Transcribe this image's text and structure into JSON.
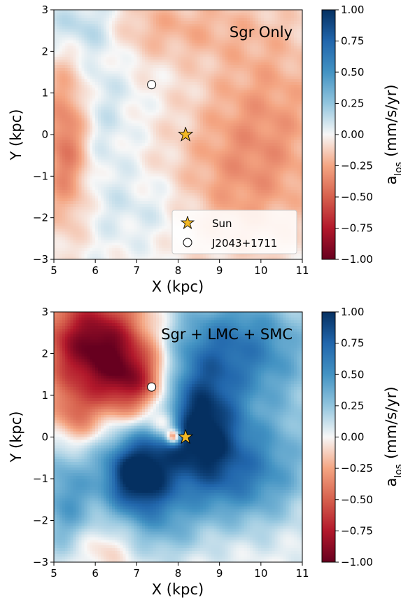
{
  "chart_data": [
    {
      "type": "heatmap",
      "title": "Sgr Only",
      "xlabel": "X (kpc)",
      "ylabel": "Y (kpc)",
      "xlim": [
        5,
        11
      ],
      "ylim": [
        -3,
        3
      ],
      "xticks": [
        "5",
        "6",
        "7",
        "8",
        "9",
        "10",
        "11"
      ],
      "yticks": [
        "3",
        "2",
        "1",
        "0",
        "−1",
        "−2",
        "−3"
      ],
      "colorbar": {
        "label_main": "a",
        "label_sub": "los",
        "label_unit": "(mm/s/yr)",
        "range": [
          -1.0,
          1.0
        ],
        "ticks": [
          "1.00",
          "0.75",
          "0.50",
          "0.25",
          "0.00",
          "−0.25",
          "−0.50",
          "−0.75",
          "−1.00"
        ],
        "colormap": "RdBu"
      },
      "markers": [
        {
          "name": "Sun",
          "shape": "star",
          "x": 8.18,
          "y": 0.0
        },
        {
          "name": "J2043+1711",
          "shape": "circle",
          "x": 7.36,
          "y": 1.2
        }
      ],
      "legend": {
        "placement": "lower-right",
        "entries": [
          "Sun",
          "J2043+1711"
        ]
      },
      "features": [
        {
          "x": 5.3,
          "y": -0.2,
          "sx": 0.4,
          "sy": 1.4,
          "a": -0.45
        },
        {
          "x": 10.2,
          "y": 0.8,
          "sx": 1.2,
          "sy": 1.6,
          "a": -0.22
        },
        {
          "x": 9.5,
          "y": -1.2,
          "sx": 1.3,
          "sy": 1.3,
          "a": -0.22
        },
        {
          "x": 7.5,
          "y": 2.6,
          "sx": 1.6,
          "sy": 0.6,
          "a": -0.2
        },
        {
          "x": 5.6,
          "y": 2.6,
          "sx": 0.7,
          "sy": 0.5,
          "a": 0.25
        },
        {
          "x": 6.0,
          "y": 0.5,
          "sx": 0.6,
          "sy": 1.5,
          "a": 0.12
        },
        {
          "x": 7.3,
          "y": -1.8,
          "sx": 0.8,
          "sy": 0.6,
          "a": 0.1
        }
      ]
    },
    {
      "type": "heatmap",
      "title": "Sgr + LMC + SMC",
      "xlabel": "X (kpc)",
      "ylabel": "Y (kpc)",
      "xlim": [
        5,
        11
      ],
      "ylim": [
        -3,
        3
      ],
      "xticks": [
        "5",
        "6",
        "7",
        "8",
        "9",
        "10",
        "11"
      ],
      "yticks": [
        "3",
        "2",
        "1",
        "0",
        "−1",
        "−2",
        "−3"
      ],
      "colorbar": {
        "label_main": "a",
        "label_sub": "los",
        "label_unit": "(mm/s/yr)",
        "range": [
          -1.0,
          1.0
        ],
        "ticks": [
          "1.00",
          "0.75",
          "0.50",
          "0.25",
          "0.00",
          "−0.25",
          "−0.50",
          "−0.75",
          "−1.00"
        ],
        "colormap": "RdBu"
      },
      "markers": [
        {
          "name": "Sun",
          "shape": "star",
          "x": 8.18,
          "y": 0.0
        },
        {
          "name": "J2043+1711",
          "shape": "circle",
          "x": 7.36,
          "y": 1.2
        }
      ],
      "features": [
        {
          "x": 6.0,
          "y": 2.2,
          "sx": 0.9,
          "sy": 0.9,
          "a": -1.0
        },
        {
          "x": 7.0,
          "y": 1.3,
          "sx": 0.6,
          "sy": 0.6,
          "a": -0.6
        },
        {
          "x": 7.7,
          "y": 0.3,
          "sx": 0.25,
          "sy": 0.25,
          "a": -0.5
        },
        {
          "x": 7.9,
          "y": 0.0,
          "sx": 0.12,
          "sy": 0.12,
          "a": -0.9
        },
        {
          "x": 5.5,
          "y": 0.5,
          "sx": 0.4,
          "sy": 0.5,
          "a": -0.35
        },
        {
          "x": 7.0,
          "y": -0.9,
          "sx": 0.6,
          "sy": 0.7,
          "a": 1.1
        },
        {
          "x": 8.5,
          "y": 0.3,
          "sx": 0.7,
          "sy": 1.0,
          "a": 0.9
        },
        {
          "x": 9.3,
          "y": 2.2,
          "sx": 1.2,
          "sy": 0.9,
          "a": 0.6
        },
        {
          "x": 9.5,
          "y": -0.9,
          "sx": 1.1,
          "sy": 0.9,
          "a": 0.55
        },
        {
          "x": 10.6,
          "y": 0.8,
          "sx": 0.8,
          "sy": 1.4,
          "a": 0.15
        },
        {
          "x": 5.3,
          "y": -1.5,
          "sx": 0.5,
          "sy": 1.0,
          "a": 0.45
        },
        {
          "x": 6.0,
          "y": -2.7,
          "sx": 0.5,
          "sy": 0.4,
          "a": -0.15
        },
        {
          "x": 7.7,
          "y": -2.2,
          "sx": 0.6,
          "sy": 0.6,
          "a": 0.25
        }
      ]
    }
  ]
}
